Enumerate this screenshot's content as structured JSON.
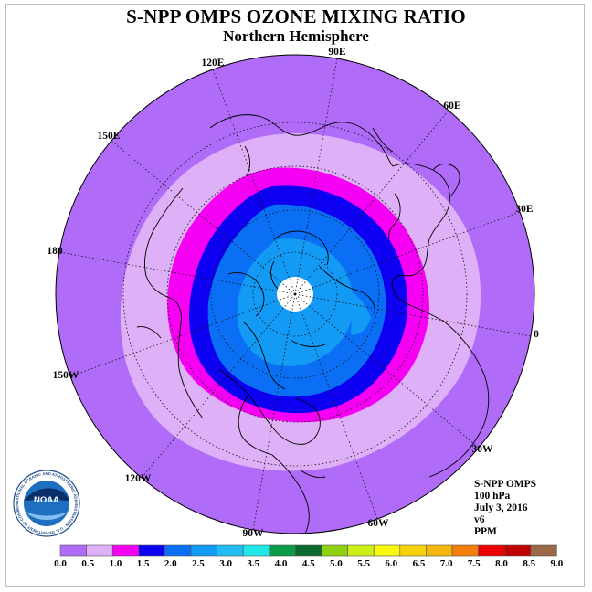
{
  "title": "S-NPP OMPS OZONE MIXING RATIO",
  "subtitle": "Northern Hemisphere",
  "longitude_labels": [
    "90E",
    "60E",
    "30E",
    "0",
    "30W",
    "60W",
    "90W",
    "120W",
    "150W",
    "180",
    "150E",
    "120E"
  ],
  "info": {
    "instrument": "S-NPP OMPS",
    "level": "100 hPa",
    "date": "July 3, 2016",
    "version": "v6",
    "units": "PPM"
  },
  "colorbar": {
    "ticks": [
      "0.0",
      "0.5",
      "1.0",
      "1.5",
      "2.0",
      "2.5",
      "3.0",
      "3.5",
      "4.0",
      "4.5",
      "5.0",
      "5.5",
      "6.0",
      "6.5",
      "7.0",
      "7.5",
      "8.0",
      "8.5",
      "9.0"
    ],
    "colors": [
      "#b06cf8",
      "#ddb0f8",
      "#f500f3",
      "#0d00f0",
      "#0a6ff5",
      "#129af4",
      "#20bcf2",
      "#21e8e8",
      "#0b9a45",
      "#0d6a2e",
      "#8fd10f",
      "#cdef17",
      "#f8f80d",
      "#f7d10a",
      "#f4b70b",
      "#f27d09",
      "#ec0000",
      "#c30000",
      "#9b6848"
    ]
  },
  "map_colors": {
    "ring_0_0.5": "#b06cf8",
    "ring_0.5_1.0": "#ddb0f8",
    "ring_1.0_1.5": "#f500f3",
    "ring_1.5_2.0": "#0d00f0",
    "ring_2.0_2.5": "#0a6ff5",
    "ring_2.5_3.0": "#129af4",
    "missing": "#ffffff"
  },
  "logo": {
    "text": "NOAA",
    "ring_text": "NATIONAL OCEANIC AND ATMOSPHERIC ADMINISTRATION · U.S. DEPARTMENT OF COMMERCE"
  }
}
